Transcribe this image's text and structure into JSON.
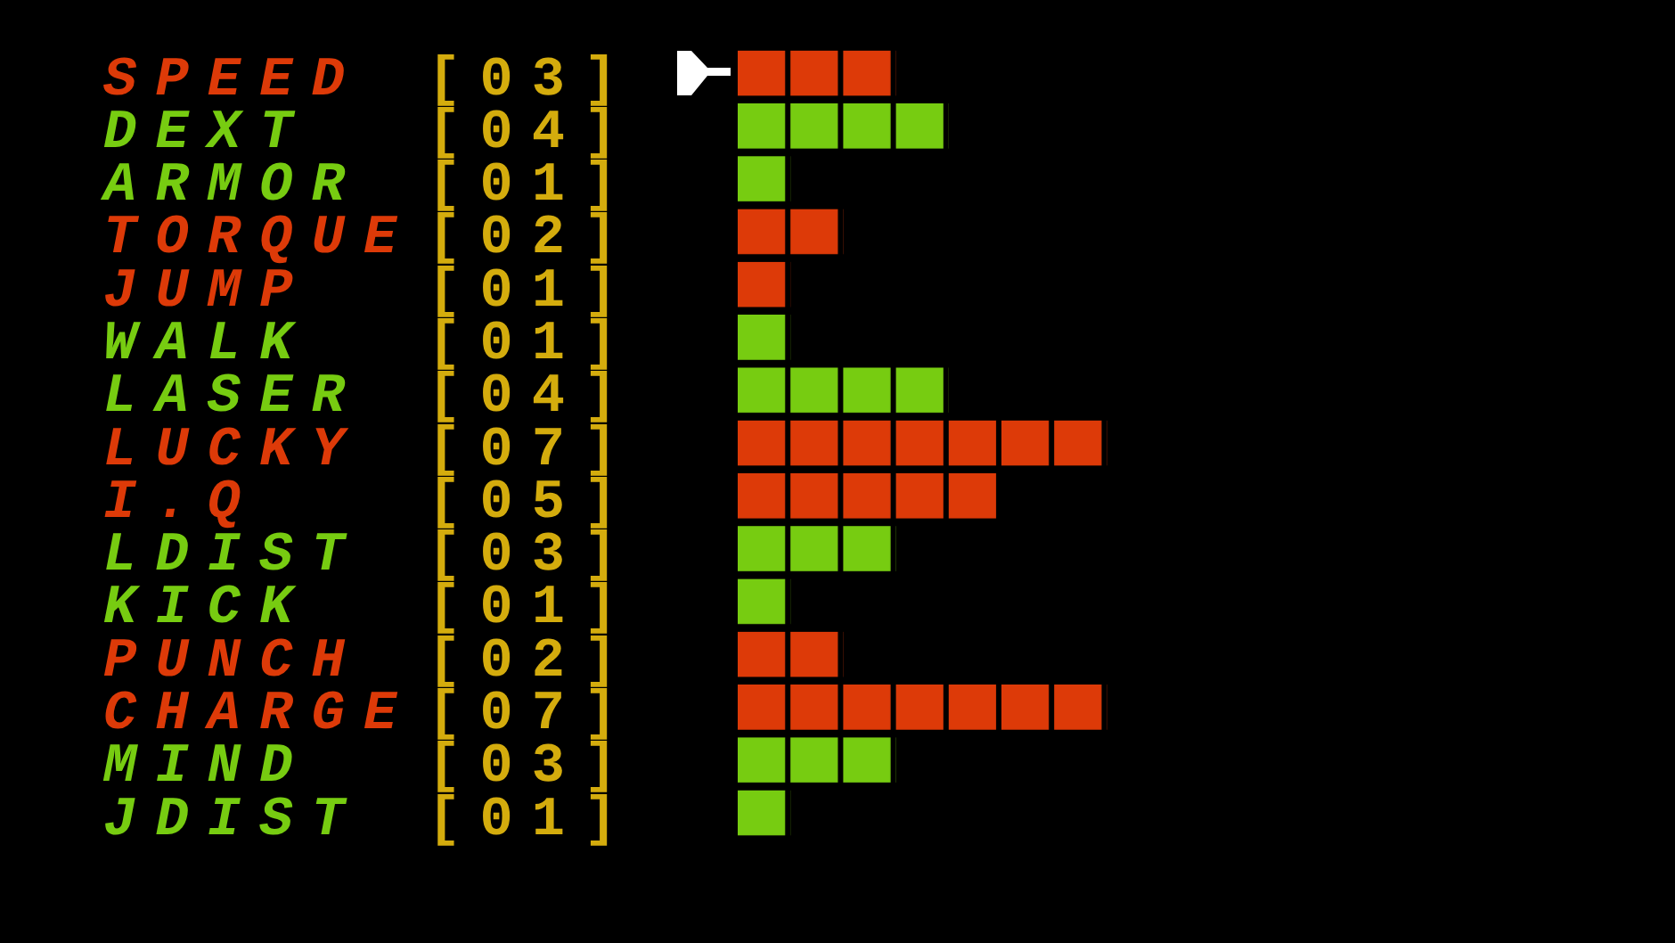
{
  "chart_data": {
    "type": "bar",
    "orientation": "horizontal",
    "categories": [
      "SPEED",
      "DEXT",
      "ARMOR",
      "TORQUE",
      "JUMP",
      "WALK",
      "LASER",
      "LUCKY",
      "I.Q",
      "LDIST",
      "KICK",
      "PUNCH",
      "CHARGE",
      "MIND",
      "JDIST"
    ],
    "values": [
      3,
      4,
      1,
      2,
      1,
      1,
      4,
      7,
      5,
      3,
      1,
      2,
      7,
      3,
      1
    ],
    "colors": [
      "#dd3a08",
      "#77cc11",
      "#77cc11",
      "#dd3a08",
      "#dd3a08",
      "#77cc11",
      "#77cc11",
      "#dd3a08",
      "#dd3a08",
      "#77cc11",
      "#77cc11",
      "#dd3a08",
      "#dd3a08",
      "#77cc11",
      "#77cc11"
    ],
    "value_labels": [
      "[03]",
      "[04]",
      "[01]",
      "[02]",
      "[01]",
      "[01]",
      "[04]",
      "[07]",
      "[05]",
      "[03]",
      "[01]",
      "[02]",
      "[07]",
      "[03]",
      "[01]"
    ]
  }
}
